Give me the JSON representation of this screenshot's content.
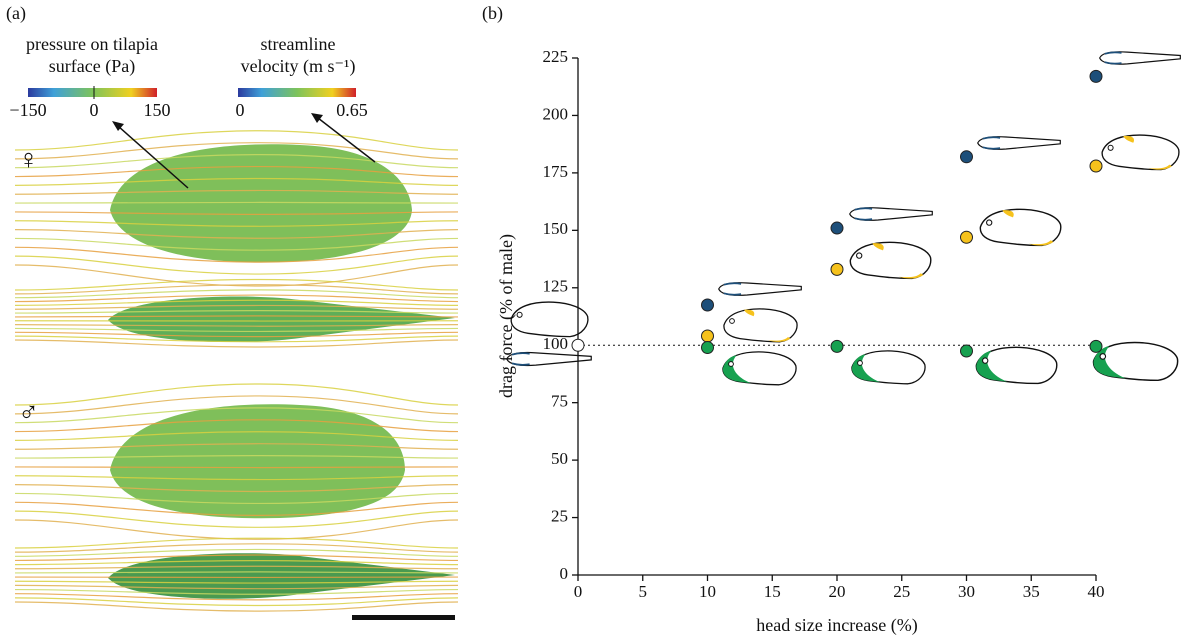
{
  "panel_a": {
    "label": "(a)",
    "pressure_title": [
      "pressure on tilapia",
      "surface (Pa)"
    ],
    "pressure_ticks": [
      "−150",
      "0",
      "150"
    ],
    "velocity_title": [
      "streamline",
      "velocity (m s⁻¹)"
    ],
    "velocity_ticks": [
      "0",
      "0.65"
    ],
    "female": "♀",
    "male": "♂"
  },
  "chart_data": {
    "type": "scatter",
    "panel_label": "(b)",
    "x_label": "head size increase (%)",
    "y_label": "drag force (% of male)",
    "xlim": [
      0,
      40
    ],
    "xticks": [
      0,
      5,
      10,
      15,
      20,
      25,
      30,
      35,
      40
    ],
    "ylim": [
      0,
      225
    ],
    "yticks": [
      0,
      25,
      50,
      75,
      100,
      125,
      150,
      175,
      200,
      225
    ],
    "reference_line": 100,
    "series": [
      {
        "color": "#ffffff",
        "x": [
          0
        ],
        "values": [
          100
        ]
      },
      {
        "color": "#1d4f7a",
        "x": [
          10,
          20,
          30,
          40
        ],
        "values": [
          117.5,
          151,
          182,
          217
        ]
      },
      {
        "color": "#f6c21c",
        "x": [
          10,
          20,
          30,
          40
        ],
        "values": [
          104,
          133,
          147,
          178
        ]
      },
      {
        "color": "#17a150",
        "x": [
          10,
          20,
          30,
          40
        ],
        "values": [
          99,
          99.5,
          97.5,
          99.5
        ]
      }
    ]
  }
}
